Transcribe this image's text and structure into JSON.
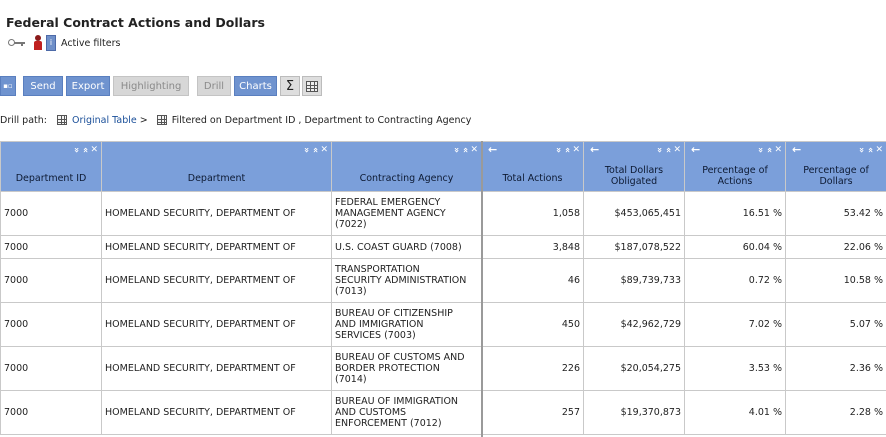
{
  "report": {
    "title": "Federal Contract Actions and Dollars",
    "active_filters_label": "Active filters"
  },
  "toolbar": {
    "send": "Send",
    "export": "Export",
    "highlighting": "Highlighting",
    "drill": "Drill",
    "charts": "Charts",
    "sigma": "Σ"
  },
  "drill_path": {
    "label": "Drill path:",
    "link": "Original Table",
    "separator": ">",
    "current": "Filtered on Department ID , Department to Contracting Agency"
  },
  "columns": {
    "department_id": "Department ID",
    "department": "Department",
    "contracting_agency": "Contracting Agency",
    "total_actions": "Total Actions",
    "total_dollars": "Total Dollars Obligated",
    "pct_actions": "Percentage of Actions",
    "pct_dollars": "Percentage of Dollars"
  },
  "header_icons": {
    "collapse": "»",
    "expand": "«",
    "close": "✕",
    "back": "←"
  },
  "rows": [
    {
      "dept_id": "7000",
      "dept": "HOMELAND SECURITY, DEPARTMENT OF",
      "agency_lines": [
        "FEDERAL EMERGENCY",
        "MANAGEMENT AGENCY",
        "(7022)"
      ],
      "actions": "1,058",
      "dollars": "$453,065,451",
      "pct_actions": "16.51 %",
      "pct_dollars": "53.42 %"
    },
    {
      "dept_id": "7000",
      "dept": "HOMELAND SECURITY, DEPARTMENT OF",
      "agency_lines": [
        "U.S. COAST GUARD (7008)"
      ],
      "actions": "3,848",
      "dollars": "$187,078,522",
      "pct_actions": "60.04 %",
      "pct_dollars": "22.06 %"
    },
    {
      "dept_id": "7000",
      "dept": "HOMELAND SECURITY, DEPARTMENT OF",
      "agency_lines": [
        "TRANSPORTATION",
        "SECURITY ADMINISTRATION",
        "(7013)"
      ],
      "actions": "46",
      "dollars": "$89,739,733",
      "pct_actions": "0.72 %",
      "pct_dollars": "10.58 %"
    },
    {
      "dept_id": "7000",
      "dept": "HOMELAND SECURITY, DEPARTMENT OF",
      "agency_lines": [
        "BUREAU OF CITIZENSHIP",
        "AND IMMIGRATION",
        "SERVICES (7003)"
      ],
      "actions": "450",
      "dollars": "$42,962,729",
      "pct_actions": "7.02 %",
      "pct_dollars": "5.07 %"
    },
    {
      "dept_id": "7000",
      "dept": "HOMELAND SECURITY, DEPARTMENT OF",
      "agency_lines": [
        "BUREAU OF CUSTOMS AND",
        "BORDER PROTECTION",
        "(7014)"
      ],
      "actions": "226",
      "dollars": "$20,054,275",
      "pct_actions": "3.53 %",
      "pct_dollars": "2.36 %"
    },
    {
      "dept_id": "7000",
      "dept": "HOMELAND SECURITY, DEPARTMENT OF",
      "agency_lines": [
        "BUREAU OF IMMIGRATION",
        "AND CUSTOMS",
        "ENFORCEMENT (7012)"
      ],
      "actions": "257",
      "dollars": "$19,370,873",
      "pct_actions": "4.01 %",
      "pct_dollars": "2.28 %"
    }
  ]
}
